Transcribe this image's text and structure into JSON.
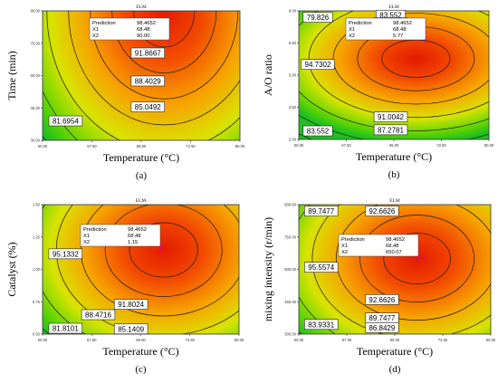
{
  "chart_data": [
    {
      "type": "contour",
      "panel_label": "(a)",
      "title": "ELM",
      "xlabel": "Temperature (°C)",
      "ylabel": "Time (min)",
      "xlim": [
        50.0,
        80.0
      ],
      "ylim": [
        30.0,
        90.0
      ],
      "xticks": [
        "50.00",
        "57.50",
        "65.00",
        "72.50",
        "80.00"
      ],
      "yticks": [
        "30.00",
        "45.00",
        "60.00",
        "75.00",
        "90.00"
      ],
      "center": {
        "x": 68.48,
        "y": 90.0
      },
      "contour_labels": [
        {
          "label": "91.8667",
          "x": 66.0,
          "y": 70.5
        },
        {
          "label": "88.4029",
          "x": 66.0,
          "y": 57.5
        },
        {
          "label": "85.0492",
          "x": 66.0,
          "y": 45.5
        },
        {
          "label": "81.6954",
          "x": 53.5,
          "y": 39.0
        }
      ],
      "prediction": {
        "title": "Prediction",
        "value": "98.4652",
        "rows": [
          {
            "name": "X1",
            "value": "68.48"
          },
          {
            "name": "X2",
            "value": "90.00"
          }
        ]
      }
    },
    {
      "type": "contour",
      "panel_label": "(b)",
      "title": "ELM",
      "xlabel": "Temperature (°C)",
      "ylabel": "A/O ratio",
      "xlim": [
        50.0,
        80.0
      ],
      "ylim": [
        2.0,
        8.0
      ],
      "xticks": [
        "50.00",
        "57.50",
        "65.00",
        "72.50",
        "80.00"
      ],
      "yticks": [
        "2.00",
        "3.50",
        "5.00",
        "6.50",
        "8.00"
      ],
      "center": {
        "x": 68.48,
        "y": 5.77
      },
      "contour_labels": [
        {
          "label": "79.826",
          "x": 53.0,
          "y": 7.7
        },
        {
          "label": "83.552",
          "x": 64.5,
          "y": 7.8
        },
        {
          "label": "87.2781",
          "x": 64.5,
          "y": 7.45
        },
        {
          "label": "91.0042",
          "x": 64.5,
          "y": 7.0
        },
        {
          "label": "94.7302",
          "x": 53.0,
          "y": 5.5
        },
        {
          "label": "91.0042",
          "x": 64.5,
          "y": 3.05
        },
        {
          "label": "83.552",
          "x": 53.0,
          "y": 2.4
        },
        {
          "label": "87.2781",
          "x": 64.5,
          "y": 2.45
        }
      ],
      "prediction": {
        "title": "Prediction",
        "value": "98.4652",
        "rows": [
          {
            "name": "X1",
            "value": "68.48"
          },
          {
            "name": "X2",
            "value": "5.77"
          }
        ]
      }
    },
    {
      "type": "contour",
      "panel_label": "(c)",
      "title": "ELM",
      "xlabel": "Temperature (°C)",
      "ylabel": "Catalyst (%)",
      "xlim": [
        50.0,
        80.0
      ],
      "ylim": [
        0.5,
        1.5
      ],
      "xticks": [
        "50.00",
        "57.50",
        "65.00",
        "72.50",
        "80.00"
      ],
      "yticks": [
        "0.50",
        "0.75",
        "1.00",
        "1.25",
        "1.50"
      ],
      "center": {
        "x": 68.48,
        "y": 1.15
      },
      "contour_labels": [
        {
          "label": "95.1332",
          "x": 53.5,
          "y": 1.12
        },
        {
          "label": "91.8024",
          "x": 63.5,
          "y": 0.73
        },
        {
          "label": "88.4716",
          "x": 58.5,
          "y": 0.65
        },
        {
          "label": "81.8101",
          "x": 53.5,
          "y": 0.545
        },
        {
          "label": "85.1409",
          "x": 63.5,
          "y": 0.54
        }
      ],
      "prediction": {
        "title": "Prediction",
        "value": "98.4652",
        "rows": [
          {
            "name": "X1",
            "value": "68.48"
          },
          {
            "name": "X2",
            "value": "1.15"
          }
        ]
      }
    },
    {
      "type": "contour",
      "panel_label": "(d)",
      "title": "ELM",
      "xlabel": "Temperature (°C)",
      "ylabel": "mixing intensity (r/min)",
      "xlim": [
        50.0,
        80.0
      ],
      "ylim": [
        300.0,
        900.0
      ],
      "xticks": [
        "50.00",
        "57.50",
        "65.00",
        "72.50",
        "80.00"
      ],
      "yticks": [
        "300.00",
        "450.00",
        "600.00",
        "750.00",
        "900.00"
      ],
      "center": {
        "x": 68.48,
        "y": 650.07
      },
      "contour_labels": [
        {
          "label": "89.7477",
          "x": 53.5,
          "y": 870.0
        },
        {
          "label": "92.6626",
          "x": 63.0,
          "y": 870.0
        },
        {
          "label": "95.5574",
          "x": 53.5,
          "y": 610.0
        },
        {
          "label": "92.6626",
          "x": 63.0,
          "y": 460.0
        },
        {
          "label": "89.7477",
          "x": 63.0,
          "y": 375.0
        },
        {
          "label": "83.9331",
          "x": 53.5,
          "y": 345.0
        },
        {
          "label": "86.8429",
          "x": 63.0,
          "y": 330.0
        }
      ],
      "prediction": {
        "title": "Prediction",
        "value": "98.4652",
        "rows": [
          {
            "name": "X1",
            "value": "68.48"
          },
          {
            "name": "X2",
            "value": "650.07"
          }
        ]
      }
    }
  ]
}
